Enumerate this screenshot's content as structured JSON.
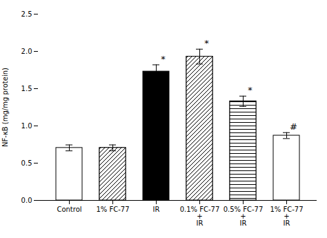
{
  "chart_data": {
    "type": "bar",
    "ylabel": "NF-κB (mg/mg protein)",
    "categories": [
      "Control",
      "1% FC-77",
      "IR",
      "0.1% FC-77\n+\nIR",
      "0.5% FC-77\n+\nIR",
      "1% FC-77\n+\nIR"
    ],
    "values": [
      0.705,
      0.705,
      1.73,
      1.93,
      1.33,
      0.87
    ],
    "errors": [
      0.04,
      0.04,
      0.09,
      0.1,
      0.07,
      0.04
    ],
    "stat_labels": [
      null,
      null,
      "*",
      "*",
      "*",
      "#"
    ],
    "colors": [
      "white",
      "white",
      "black",
      "white",
      "white",
      "white"
    ],
    "ylim": [
      0.0,
      2.5
    ],
    "yticks": [
      {
        "value": 0.0,
        "label": "0.0"
      },
      {
        "value": 0.5,
        "label": "0.5"
      },
      {
        "value": 1.0,
        "label": "1.0"
      },
      {
        "value": 1.5,
        "label": "1.5"
      },
      {
        "value": 2.0,
        "label": "2.0"
      },
      {
        "value": 2.5,
        "label": "2.5"
      }
    ],
    "grid": false
  }
}
